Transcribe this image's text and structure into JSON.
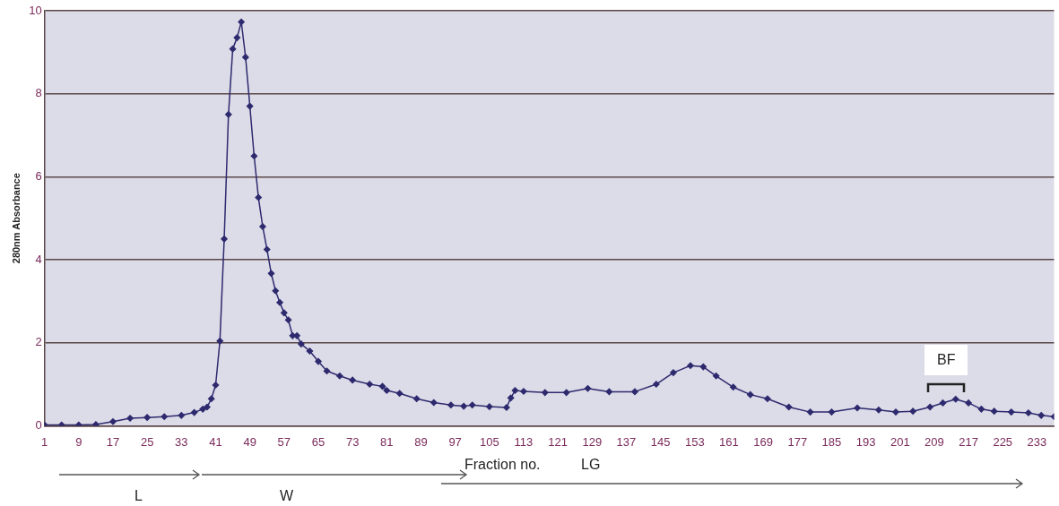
{
  "chart_data": {
    "type": "line",
    "xlabel": "Fraction no.",
    "ylabel": "280nm Absorbance",
    "xlim": [
      1,
      237
    ],
    "xticks": [
      1,
      9,
      17,
      25,
      33,
      41,
      49,
      57,
      65,
      73,
      81,
      89,
      97,
      105,
      113,
      121,
      129,
      137,
      145,
      153,
      161,
      169,
      177,
      185,
      193,
      201,
      209,
      217,
      225,
      233
    ],
    "ylim": [
      0,
      10
    ],
    "yticks": [
      0,
      2,
      4,
      6,
      8,
      10
    ],
    "grid": "y",
    "legend": false,
    "marker": "diamond",
    "line_style": "solid",
    "series": [
      {
        "color": "#2e2a6e",
        "x": [
          1,
          5,
          9,
          13,
          17,
          21,
          25,
          29,
          33,
          36,
          38,
          39,
          40,
          41,
          42,
          43,
          44,
          45,
          46,
          47,
          48,
          49,
          50,
          51,
          52,
          53,
          54,
          55,
          56,
          57,
          58,
          59,
          60,
          61,
          63,
          65,
          67,
          70,
          73,
          77,
          80,
          81,
          84,
          88,
          92,
          96,
          99,
          101,
          105,
          109,
          110,
          111,
          113,
          118,
          123,
          128,
          133,
          139,
          144,
          148,
          152,
          155,
          158,
          162,
          166,
          170,
          175,
          180,
          185,
          191,
          196,
          200,
          204,
          208,
          211,
          214,
          217,
          220,
          223,
          227,
          231,
          234,
          237
        ],
        "values": [
          0.02,
          0.02,
          0.02,
          0.03,
          0.1,
          0.18,
          0.2,
          0.22,
          0.25,
          0.32,
          0.4,
          0.45,
          0.65,
          0.98,
          2.04,
          4.5,
          7.5,
          9.08,
          9.35,
          9.73,
          8.88,
          7.7,
          6.5,
          5.5,
          4.8,
          4.25,
          3.67,
          3.25,
          2.97,
          2.72,
          2.55,
          2.17,
          2.17,
          1.97,
          1.8,
          1.55,
          1.32,
          1.2,
          1.1,
          1.0,
          0.95,
          0.85,
          0.78,
          0.65,
          0.56,
          0.5,
          0.47,
          0.5,
          0.46,
          0.44,
          0.67,
          0.85,
          0.83,
          0.8,
          0.8,
          0.9,
          0.82,
          0.82,
          1.0,
          1.28,
          1.45,
          1.42,
          1.2,
          0.93,
          0.75,
          0.65,
          0.45,
          0.33,
          0.33,
          0.43,
          0.38,
          0.33,
          0.35,
          0.45,
          0.55,
          0.64,
          0.55,
          0.4,
          0.35,
          0.33,
          0.31,
          0.25,
          0.22
        ]
      }
    ],
    "annotations": [
      "BF",
      "L",
      "W",
      "LG"
    ]
  }
}
